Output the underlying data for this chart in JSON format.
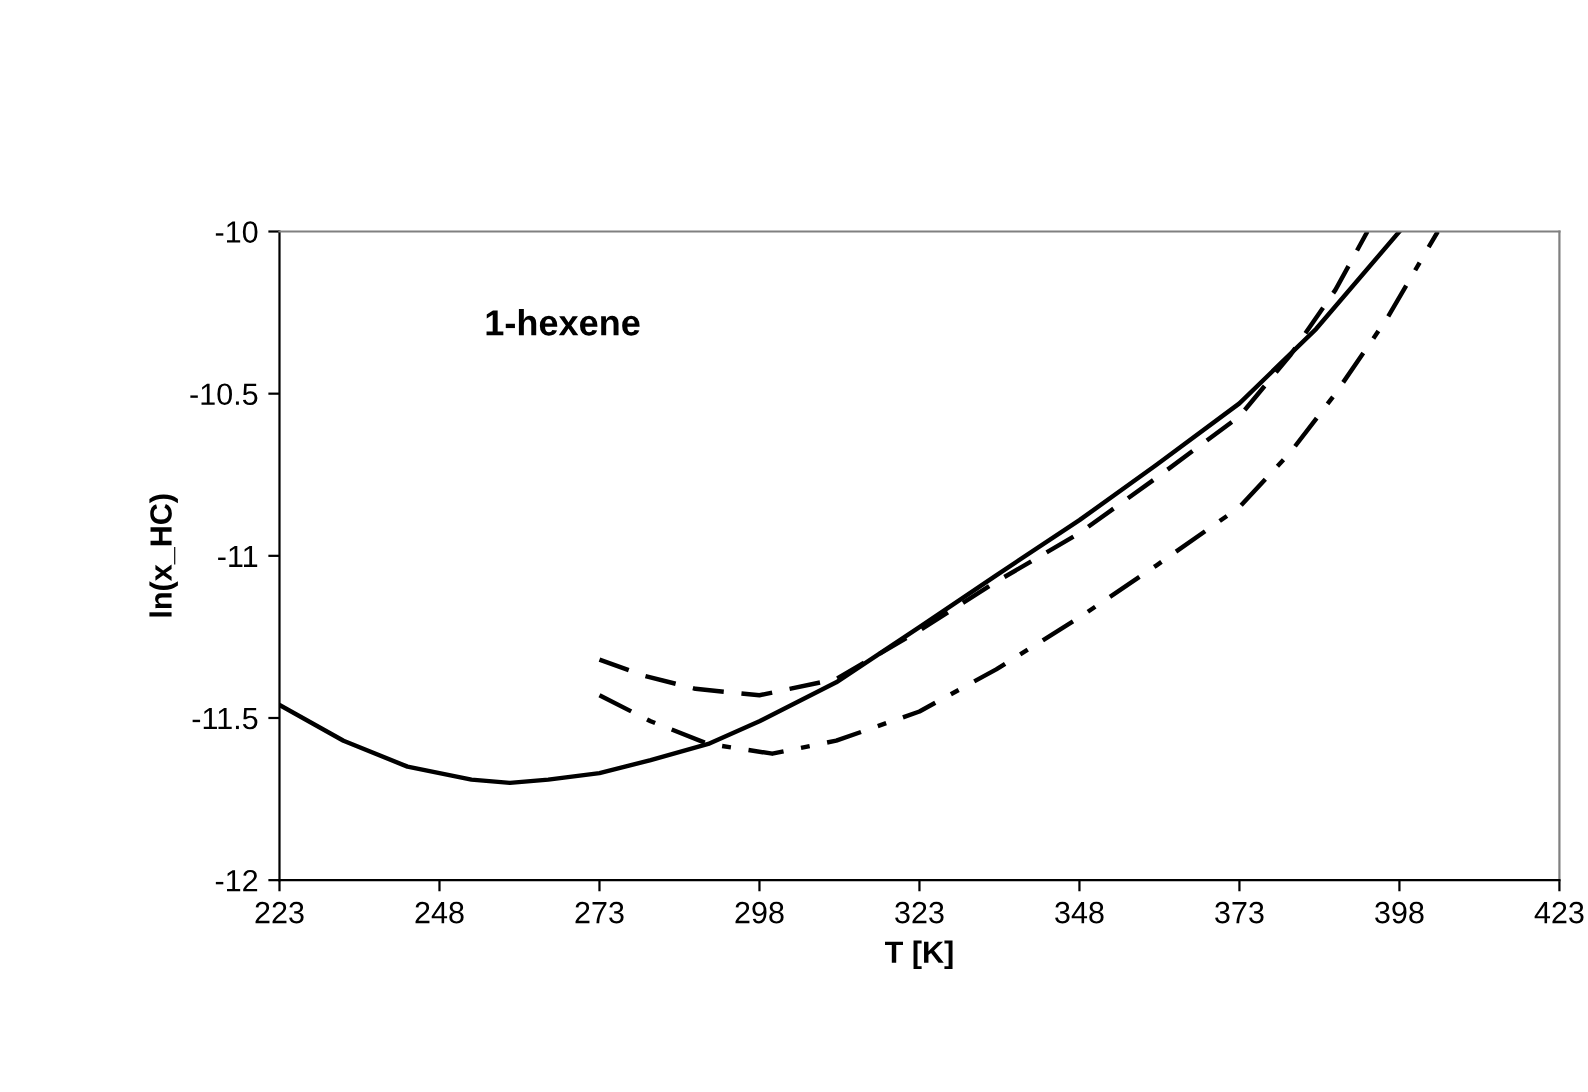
{
  "chart_data": {
    "type": "line",
    "xlabel": "T [K]",
    "ylabel": "ln(x_HC)",
    "annotations": [
      "1-hexene"
    ],
    "xlim": [
      223,
      423
    ],
    "ylim": [
      -12,
      -10
    ],
    "xticks": [
      223,
      248,
      273,
      298,
      323,
      348,
      373,
      398,
      423
    ],
    "yticks": [
      -12,
      -11.5,
      -11,
      -10.5,
      -10
    ],
    "grid": false,
    "legend": false,
    "marker": "none",
    "series": [
      {
        "color": "#000000",
        "line_style": "solid",
        "x": [
          223,
          233,
          243,
          253,
          259,
          265,
          273,
          281,
          290,
          298,
          310,
          323,
          335,
          348,
          360,
          373,
          385,
          398
        ],
        "values": [
          -11.46,
          -11.57,
          -11.65,
          -11.69,
          -11.7,
          -11.69,
          -11.67,
          -11.63,
          -11.58,
          -11.51,
          -11.39,
          -11.22,
          -11.06,
          -10.89,
          -10.72,
          -10.53,
          -10.3,
          -10.0
        ]
      },
      {
        "color": "#000000",
        "line_style": "dashed",
        "x": [
          273,
          280,
          288,
          298,
          310,
          323,
          335,
          348,
          360,
          373,
          381,
          388,
          393
        ],
        "values": [
          -11.32,
          -11.37,
          -11.41,
          -11.43,
          -11.38,
          -11.23,
          -11.08,
          -10.93,
          -10.76,
          -10.57,
          -10.38,
          -10.18,
          -10.0
        ]
      },
      {
        "color": "#000000",
        "line_style": "dashdot",
        "x": [
          273,
          281,
          290,
          300,
          310,
          323,
          335,
          348,
          360,
          373,
          381,
          388,
          396,
          404
        ],
        "values": [
          -11.43,
          -11.51,
          -11.58,
          -11.61,
          -11.57,
          -11.48,
          -11.35,
          -11.19,
          -11.03,
          -10.85,
          -10.68,
          -10.5,
          -10.27,
          -10.0
        ]
      }
    ]
  }
}
